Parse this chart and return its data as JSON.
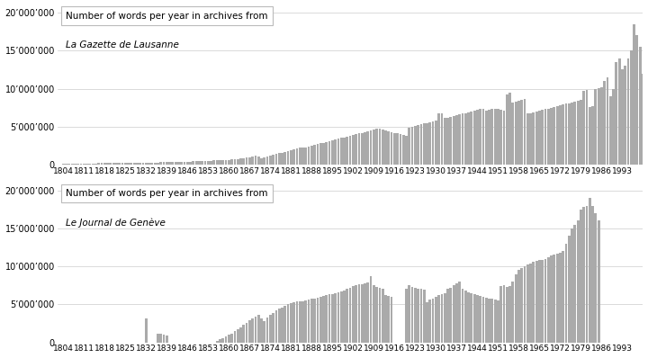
{
  "gazette_lausanne": {
    "title_line1": "Number of words per year in archives from",
    "title_line2": "La Gazette de Lausanne",
    "start_year": 1804,
    "values": [
      120000,
      130000,
      140000,
      150000,
      160000,
      155000,
      160000,
      170000,
      180000,
      175000,
      170000,
      180000,
      190000,
      185000,
      190000,
      195000,
      200000,
      210000,
      220000,
      215000,
      220000,
      230000,
      240000,
      235000,
      240000,
      250000,
      260000,
      255000,
      260000,
      270000,
      280000,
      290000,
      300000,
      310000,
      320000,
      330000,
      340000,
      350000,
      360000,
      370000,
      380000,
      390000,
      400000,
      420000,
      440000,
      450000,
      460000,
      470000,
      480000,
      500000,
      520000,
      540000,
      560000,
      580000,
      600000,
      620000,
      640000,
      680000,
      720000,
      760000,
      800000,
      850000,
      900000,
      1000000,
      1100000,
      1200000,
      1100000,
      800000,
      1000000,
      1100000,
      1200000,
      1300000,
      1400000,
      1500000,
      1600000,
      1700000,
      1800000,
      1900000,
      2000000,
      2100000,
      2200000,
      2200000,
      2300000,
      2400000,
      2500000,
      2600000,
      2700000,
      2800000,
      2900000,
      3000000,
      3100000,
      3200000,
      3300000,
      3400000,
      3500000,
      3600000,
      3700000,
      3800000,
      3900000,
      4000000,
      4100000,
      4200000,
      4300000,
      4400000,
      4500000,
      4600000,
      4700000,
      4700000,
      4600000,
      4500000,
      4400000,
      4300000,
      4200000,
      4100000,
      4000000,
      3900000,
      3800000,
      4900000,
      5000000,
      5100000,
      5200000,
      5300000,
      5400000,
      5500000,
      5600000,
      5700000,
      5800000,
      6800000,
      6700000,
      6100000,
      6200000,
      6300000,
      6400000,
      6500000,
      6600000,
      6700000,
      6800000,
      6900000,
      7000000,
      7100000,
      7200000,
      7300000,
      7400000,
      7100000,
      7200000,
      7300000,
      7400000,
      7300000,
      7200000,
      7100000,
      9200000,
      9500000,
      8200000,
      8300000,
      8400000,
      8500000,
      8600000,
      6700000,
      6800000,
      6900000,
      7000000,
      7100000,
      7200000,
      7300000,
      7400000,
      7500000,
      7600000,
      7700000,
      7800000,
      7900000,
      8000000,
      8100000,
      8200000,
      8300000,
      8400000,
      8500000,
      9700000,
      9800000,
      7600000,
      7700000,
      9900000,
      10100000,
      10200000,
      11000000,
      11500000,
      9000000,
      10000000,
      13500000,
      14000000,
      12500000,
      13000000,
      14000000,
      15000000,
      18500000,
      17000000,
      15500000,
      12000000
    ]
  },
  "journal_geneve": {
    "title_line1": "Number of words per year in archives from",
    "title_line2": "Le Journal de Genève",
    "start_year": 1804,
    "values": [
      0,
      0,
      0,
      0,
      0,
      0,
      0,
      0,
      0,
      0,
      0,
      0,
      0,
      0,
      0,
      0,
      0,
      0,
      0,
      0,
      0,
      0,
      0,
      0,
      0,
      0,
      0,
      0,
      3200000,
      0,
      0,
      0,
      1100000,
      1100000,
      1000000,
      900000,
      0,
      0,
      0,
      0,
      0,
      0,
      0,
      0,
      0,
      0,
      0,
      0,
      0,
      0,
      0,
      0,
      200000,
      400000,
      600000,
      800000,
      1000000,
      1200000,
      1500000,
      1700000,
      2000000,
      2300000,
      2600000,
      2900000,
      3200000,
      3400000,
      3600000,
      3200000,
      2800000,
      3300000,
      3600000,
      3900000,
      4200000,
      4400000,
      4600000,
      4800000,
      5000000,
      5200000,
      5300000,
      5400000,
      5400000,
      5400000,
      5500000,
      5600000,
      5700000,
      5800000,
      5900000,
      6000000,
      6100000,
      6200000,
      6300000,
      6400000,
      6500000,
      6600000,
      6700000,
      6800000,
      7000000,
      7200000,
      7400000,
      7500000,
      7600000,
      7700000,
      7800000,
      7900000,
      8700000,
      7500000,
      7300000,
      7200000,
      7100000,
      6200000,
      6100000,
      6000000,
      0,
      0,
      0,
      0,
      7000000,
      7500000,
      7300000,
      7200000,
      7100000,
      7000000,
      6900000,
      5300000,
      5600000,
      5800000,
      6000000,
      6200000,
      6400000,
      6500000,
      7000000,
      7200000,
      7500000,
      7800000,
      8000000,
      7000000,
      6800000,
      6600000,
      6500000,
      6300000,
      6200000,
      6100000,
      6000000,
      5900000,
      5800000,
      5700000,
      5600000,
      5500000,
      7400000,
      7500000,
      7300000,
      7400000,
      8000000,
      9000000,
      9500000,
      9800000,
      10000000,
      10200000,
      10400000,
      10600000,
      10700000,
      10800000,
      10900000,
      11000000,
      11200000,
      11400000,
      11500000,
      11700000,
      11800000,
      12000000,
      13000000,
      14000000,
      15000000,
      15500000,
      16000000,
      17500000,
      17800000,
      18000000,
      19000000,
      18000000,
      17000000,
      16000000
    ]
  },
  "bar_color": "#aaaaaa",
  "bg_color": "#ffffff",
  "grid_color": "#cccccc",
  "yticks": [
    0,
    5000000,
    10000000,
    15000000,
    20000000
  ],
  "xtick_years": [
    1804,
    1811,
    1818,
    1825,
    1832,
    1839,
    1846,
    1853,
    1860,
    1867,
    1874,
    1881,
    1888,
    1895,
    1902,
    1909,
    1916,
    1923,
    1930,
    1937,
    1944,
    1951,
    1958,
    1965,
    1972,
    1979,
    1986,
    1993
  ]
}
